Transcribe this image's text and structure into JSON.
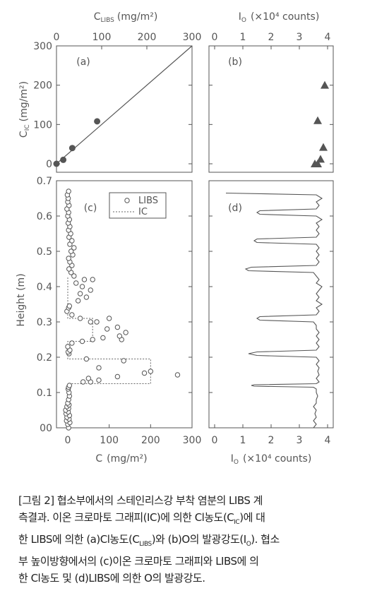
{
  "chart_data": [
    {
      "id": "a",
      "panel_label": "(a)",
      "type": "scatter",
      "xlabel": "C",
      "xlabel_sub": "LIBS",
      "xlabel_unit": "(mg/m²)",
      "ylabel": "C",
      "ylabel_sub": "IC",
      "ylabel_unit": "(mg/m²)",
      "xlim": [
        0,
        300
      ],
      "ylim": [
        0,
        300
      ],
      "xticks": [
        0,
        100,
        200,
        300
      ],
      "yticks": [
        0,
        100,
        200,
        300
      ],
      "reference_line": "y = x",
      "points": [
        {
          "x": 0,
          "y": 0
        },
        {
          "x": 15,
          "y": 10
        },
        {
          "x": 35,
          "y": 40
        },
        {
          "x": 90,
          "y": 108
        }
      ]
    },
    {
      "id": "b",
      "panel_label": "(b)",
      "type": "scatter",
      "xlabel": "I",
      "xlabel_sub": "O",
      "xlabel_unit": "(×10⁴ counts)",
      "xlim": [
        0,
        4.2
      ],
      "ylim": [
        0,
        300
      ],
      "xticks": [
        0,
        1,
        2,
        3,
        4
      ],
      "yticks": [
        0,
        100,
        200
      ],
      "marker": "triangle",
      "points": [
        {
          "x": 3.55,
          "y": 0
        },
        {
          "x": 3.65,
          "y": 0
        },
        {
          "x": 3.75,
          "y": 12
        },
        {
          "x": 3.85,
          "y": 42
        },
        {
          "x": 3.65,
          "y": 110
        },
        {
          "x": 3.9,
          "y": 200
        }
      ]
    },
    {
      "id": "c",
      "panel_label": "(c)",
      "type": "scatter",
      "xlabel": "C",
      "xlabel_unit": "(mg/m²)",
      "ylabel": "Height (m)",
      "xlim": [
        0,
        300
      ],
      "ylim": [
        0,
        0.7
      ],
      "xticks": [
        0,
        100,
        200,
        300
      ],
      "yticks": [
        0,
        0.1,
        0.2,
        0.3,
        0.4,
        0.5,
        0.6,
        0.7
      ],
      "ytick_labels": [
        "00",
        "0.1",
        "0.2",
        "0.3",
        "0.4",
        "0.5",
        "0.6",
        "0.7"
      ],
      "legend": [
        {
          "label": "LIBS",
          "style": "open-circle"
        },
        {
          "label": "IC",
          "style": "dotted-line"
        }
      ],
      "series": [
        {
          "name": "LIBS",
          "points": [
            [
              2,
              0.0
            ],
            [
              0,
              0.01
            ],
            [
              5,
              0.015
            ],
            [
              -3,
              0.02
            ],
            [
              3,
              0.025
            ],
            [
              -2,
              0.03
            ],
            [
              4,
              0.035
            ],
            [
              -4,
              0.04
            ],
            [
              1,
              0.045
            ],
            [
              -5,
              0.05
            ],
            [
              2,
              0.055
            ],
            [
              -2,
              0.06
            ],
            [
              3,
              0.065
            ],
            [
              0,
              0.07
            ],
            [
              2,
              0.08
            ],
            [
              4,
              0.09
            ],
            [
              3,
              0.1
            ],
            [
              1,
              0.11
            ],
            [
              2,
              0.115
            ],
            [
              4,
              0.12
            ],
            [
              37,
              0.13
            ],
            [
              55,
              0.13
            ],
            [
              75,
              0.135
            ],
            [
              50,
              0.14
            ],
            [
              120,
              0.145
            ],
            [
              185,
              0.155
            ],
            [
              200,
              0.16
            ],
            [
              265,
              0.15
            ],
            [
              75,
              0.17
            ],
            [
              135,
              0.19
            ],
            [
              45,
              0.195
            ],
            [
              3,
              0.21
            ],
            [
              1,
              0.215
            ],
            [
              5,
              0.22
            ],
            [
              0,
              0.23
            ],
            [
              10,
              0.24
            ],
            [
              35,
              0.245
            ],
            [
              60,
              0.25
            ],
            [
              85,
              0.255
            ],
            [
              130,
              0.25
            ],
            [
              125,
              0.26
            ],
            [
              140,
              0.27
            ],
            [
              95,
              0.28
            ],
            [
              120,
              0.285
            ],
            [
              55,
              0.3
            ],
            [
              70,
              0.3
            ],
            [
              100,
              0.31
            ],
            [
              30,
              0.31
            ],
            [
              10,
              0.32
            ],
            [
              -2,
              0.33
            ],
            [
              2,
              0.34
            ],
            [
              4,
              0.345
            ],
            [
              25,
              0.36
            ],
            [
              45,
              0.37
            ],
            [
              30,
              0.38
            ],
            [
              55,
              0.39
            ],
            [
              35,
              0.4
            ],
            [
              20,
              0.41
            ],
            [
              40,
              0.42
            ],
            [
              60,
              0.42
            ],
            [
              15,
              0.43
            ],
            [
              8,
              0.44
            ],
            [
              3,
              0.45
            ],
            [
              10,
              0.46
            ],
            [
              5,
              0.47
            ],
            [
              2,
              0.48
            ],
            [
              12,
              0.49
            ],
            [
              8,
              0.5
            ],
            [
              15,
              0.51
            ],
            [
              5,
              0.52
            ],
            [
              10,
              0.53
            ],
            [
              3,
              0.54
            ],
            [
              7,
              0.55
            ],
            [
              2,
              0.56
            ],
            [
              5,
              0.57
            ],
            [
              1,
              0.58
            ],
            [
              4,
              0.59
            ],
            [
              0,
              0.6
            ],
            [
              2,
              0.61
            ],
            [
              -2,
              0.62
            ],
            [
              3,
              0.63
            ],
            [
              0,
              0.64
            ],
            [
              1,
              0.65
            ],
            [
              -1,
              0.66
            ],
            [
              2,
              0.67
            ]
          ]
        },
        {
          "name": "IC",
          "step_profile": [
            [
              0,
              0.0
            ],
            [
              0,
              0.125
            ],
            [
              200,
              0.125
            ],
            [
              200,
              0.195
            ],
            [
              0,
              0.195
            ],
            [
              0,
              0.245
            ],
            [
              60,
              0.245
            ],
            [
              60,
              0.31
            ],
            [
              0,
              0.31
            ],
            [
              0,
              0.33
            ],
            [
              0,
              0.42
            ],
            [
              0,
              0.43
            ]
          ]
        }
      ]
    },
    {
      "id": "d",
      "panel_label": "(d)",
      "type": "line",
      "xlabel": "I",
      "xlabel_sub": "O",
      "xlabel_unit": "(×10⁴ counts)",
      "xlim": [
        0,
        4.2
      ],
      "ylim": [
        0,
        0.7
      ],
      "xticks": [
        0,
        1,
        2,
        3,
        4
      ],
      "profile": [
        [
          3.5,
          0.0
        ],
        [
          3.6,
          0.01
        ],
        [
          3.5,
          0.02
        ],
        [
          3.6,
          0.03
        ],
        [
          3.55,
          0.04
        ],
        [
          3.6,
          0.05
        ],
        [
          3.5,
          0.06
        ],
        [
          3.6,
          0.07
        ],
        [
          3.6,
          0.08
        ],
        [
          3.65,
          0.09
        ],
        [
          3.6,
          0.1
        ],
        [
          3.6,
          0.11
        ],
        [
          3.5,
          0.115
        ],
        [
          1.4,
          0.118
        ],
        [
          1.3,
          0.12
        ],
        [
          1.4,
          0.122
        ],
        [
          3.6,
          0.125
        ],
        [
          3.7,
          0.13
        ],
        [
          3.6,
          0.14
        ],
        [
          3.7,
          0.15
        ],
        [
          3.65,
          0.16
        ],
        [
          3.7,
          0.17
        ],
        [
          3.6,
          0.18
        ],
        [
          3.7,
          0.19
        ],
        [
          3.6,
          0.2
        ],
        [
          1.5,
          0.205
        ],
        [
          1.2,
          0.21
        ],
        [
          1.5,
          0.215
        ],
        [
          3.6,
          0.22
        ],
        [
          3.7,
          0.23
        ],
        [
          3.6,
          0.24
        ],
        [
          3.7,
          0.25
        ],
        [
          3.6,
          0.26
        ],
        [
          3.7,
          0.27
        ],
        [
          3.6,
          0.28
        ],
        [
          3.6,
          0.29
        ],
        [
          3.5,
          0.3
        ],
        [
          1.6,
          0.305
        ],
        [
          1.5,
          0.31
        ],
        [
          1.6,
          0.315
        ],
        [
          3.6,
          0.32
        ],
        [
          3.7,
          0.33
        ],
        [
          3.6,
          0.34
        ],
        [
          3.8,
          0.35
        ],
        [
          3.6,
          0.36
        ],
        [
          3.7,
          0.37
        ],
        [
          3.6,
          0.38
        ],
        [
          3.7,
          0.39
        ],
        [
          3.8,
          0.4
        ],
        [
          3.6,
          0.41
        ],
        [
          3.7,
          0.42
        ],
        [
          3.6,
          0.43
        ],
        [
          3.5,
          0.44
        ],
        [
          1.2,
          0.445
        ],
        [
          1.1,
          0.45
        ],
        [
          1.3,
          0.455
        ],
        [
          3.6,
          0.46
        ],
        [
          3.7,
          0.47
        ],
        [
          3.6,
          0.48
        ],
        [
          3.7,
          0.49
        ],
        [
          3.6,
          0.5
        ],
        [
          3.7,
          0.51
        ],
        [
          3.6,
          0.52
        ],
        [
          1.5,
          0.525
        ],
        [
          1.4,
          0.53
        ],
        [
          1.5,
          0.535
        ],
        [
          3.6,
          0.54
        ],
        [
          3.7,
          0.55
        ],
        [
          3.6,
          0.56
        ],
        [
          3.7,
          0.57
        ],
        [
          3.6,
          0.58
        ],
        [
          3.8,
          0.59
        ],
        [
          3.6,
          0.6
        ],
        [
          1.6,
          0.605
        ],
        [
          1.5,
          0.61
        ],
        [
          1.6,
          0.615
        ],
        [
          3.6,
          0.62
        ],
        [
          3.7,
          0.63
        ],
        [
          3.6,
          0.64
        ],
        [
          3.8,
          0.65
        ],
        [
          3.6,
          0.66
        ],
        [
          0.4,
          0.665
        ]
      ]
    }
  ],
  "caption": {
    "lines": [
      "[그림 2] 협소부에서의 스테인리스강 부착 염분의 LIBS 계",
      "측결과. 이온 크로마토 그래피(IC)에 의한 Cl농도(C",
      "한 LIBS에 의한 (a)Cl농도(C",
      "부 높이방향에서의 (c)이온 크로마토 그래피와 LIBS에 의",
      "한 Cl농도 및 (d)LIBS에 의한 O의 발광강도."
    ],
    "line2_sub": "IC",
    "line2_tail": ")에 대",
    "line3_sub": "LIBS",
    "line3_mid": ")와 (b)O의 발광강도(I",
    "line3_sub2": "O",
    "line3_tail": "). 협소"
  }
}
